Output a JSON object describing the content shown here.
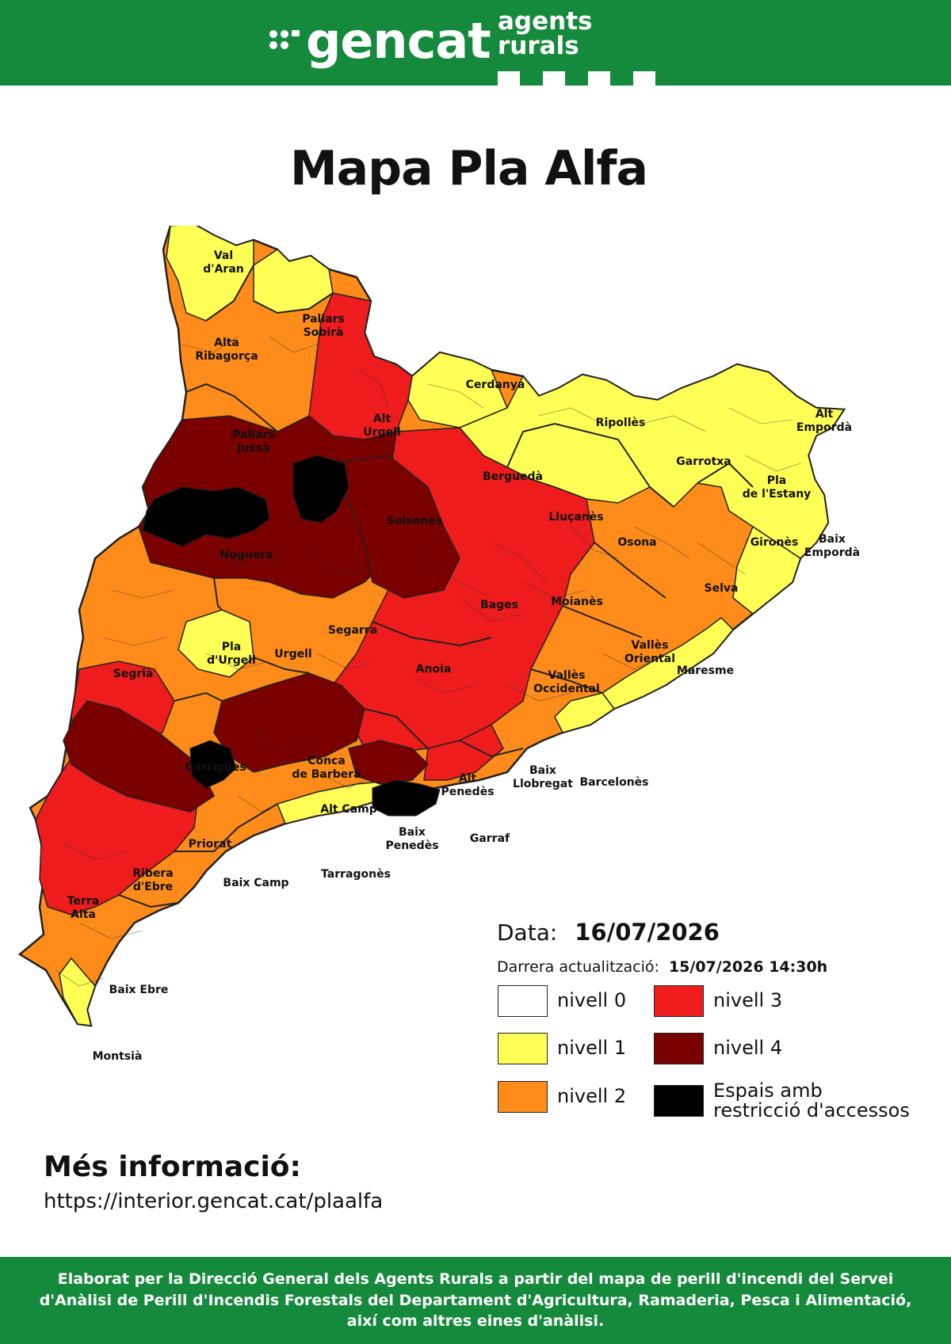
{
  "header": {
    "logo_text": "gencat",
    "agency_text": "agents rurals",
    "background": "#158a3c"
  },
  "title": "Mapa Pla Alfa",
  "date": {
    "label": "Data:",
    "value": "16/07/2026"
  },
  "update": {
    "label": "Darrera actualització:",
    "value": "15/07/2026 14:30h"
  },
  "legend": [
    {
      "label": "nivell 0",
      "color": "#ffffff"
    },
    {
      "label": "nivell 1",
      "color": "#ffff55"
    },
    {
      "label": "nivell 2",
      "color": "#ff8c1a"
    },
    {
      "label": "nivell 3",
      "color": "#ee1c1c"
    },
    {
      "label": "nivell 4",
      "color": "#7a0000"
    },
    {
      "label": "Espais amb restricció d'accessos",
      "color": "#000000"
    }
  ],
  "map": {
    "regions": [
      {
        "name": "Val d'Aran",
        "level": 1
      },
      {
        "name": "Pallars Sobirà",
        "level": 2
      },
      {
        "name": "Alta Ribagorça",
        "level": 2
      },
      {
        "name": "Cerdanya",
        "level": 1
      },
      {
        "name": "Alt Urgell",
        "level": 3
      },
      {
        "name": "Ripollès",
        "level": 1
      },
      {
        "name": "Alt Empordà",
        "level": 1
      },
      {
        "name": "Pallars Jussà",
        "level": 4
      },
      {
        "name": "Garrotxa",
        "level": 1
      },
      {
        "name": "Pla de l'Estany",
        "level": 2
      },
      {
        "name": "Berguedà",
        "level": 3
      },
      {
        "name": "Solsonès",
        "level": 4
      },
      {
        "name": "Lluçanès",
        "level": 3
      },
      {
        "name": "Osona",
        "level": 2
      },
      {
        "name": "Gironès",
        "level": 2
      },
      {
        "name": "Baix Empordà",
        "level": 1
      },
      {
        "name": "Noguera",
        "level": 4
      },
      {
        "name": "Selva",
        "level": 2
      },
      {
        "name": "Bages",
        "level": 3
      },
      {
        "name": "Moianès",
        "level": 3
      },
      {
        "name": "Segarra",
        "level": 3
      },
      {
        "name": "Pla d'Urgell",
        "level": 2
      },
      {
        "name": "Urgell",
        "level": 2
      },
      {
        "name": "Vallès Oriental",
        "level": 2
      },
      {
        "name": "Segrià",
        "level": 2
      },
      {
        "name": "Anoia",
        "level": 3
      },
      {
        "name": "Vallès Occidental",
        "level": 2
      },
      {
        "name": "Maresme",
        "level": 1
      },
      {
        "name": "Garrigues",
        "level": 3
      },
      {
        "name": "Conca de Barberà",
        "level": 4
      },
      {
        "name": "Baix Llobregat",
        "level": 2
      },
      {
        "name": "Barcelonès",
        "level": 1
      },
      {
        "name": "Alt Penedès",
        "level": 3
      },
      {
        "name": "Alt Camp",
        "level": 2
      },
      {
        "name": "Baix Penedès",
        "level": 2
      },
      {
        "name": "Priorat",
        "level": 4
      },
      {
        "name": "Garraf",
        "level": 2
      },
      {
        "name": "Ribera d'Ebre",
        "level": 3
      },
      {
        "name": "Baix Camp",
        "level": 2
      },
      {
        "name": "Tarragonès",
        "level": 1
      },
      {
        "name": "Terra Alta",
        "level": 3
      },
      {
        "name": "Baix Ebre",
        "level": 2
      },
      {
        "name": "Montsià",
        "level": 2
      }
    ]
  },
  "more_info": {
    "title": "Més informació:",
    "url": "https://interior.gencat.cat/plaalfa"
  },
  "footer": {
    "text": "Elaborat per la Direcció General dels Agents Rurals a partir del mapa de perill d'incendi del Servei d'Anàlisi de Perill d'Incendis Forestals del Departament d'Agricultura, Ramaderia, Pesca i Alimentació, així com altres eines d'anàlisi."
  }
}
